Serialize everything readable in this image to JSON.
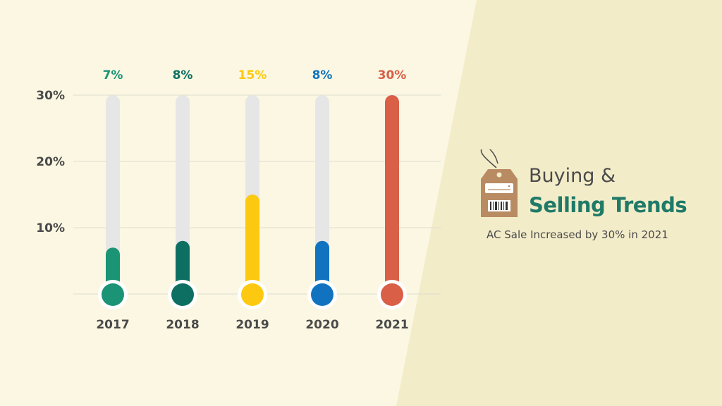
{
  "heading": {
    "line1": "Buying &",
    "line2": "Selling Trends",
    "subtitle": "AC Sale Increased by 30% in 2021"
  },
  "colors": {
    "background": "#f3ecc9",
    "panel": "#fbf7e2",
    "track": "#e6e6e6",
    "grid": "#dcdcd0",
    "accent_text": "#1f7a68",
    "tag": "#b88b63"
  },
  "icons": [
    "price-tag-icon",
    "air-conditioner-icon",
    "barcode-icon"
  ],
  "chart_data": {
    "type": "bar",
    "style": "thermometer",
    "categories": [
      "2017",
      "2018",
      "2019",
      "2020",
      "2021"
    ],
    "values": [
      7,
      8,
      15,
      8,
      30
    ],
    "value_labels": [
      "7%",
      "8%",
      "15%",
      "8%",
      "30%"
    ],
    "colors": [
      "#1a9474",
      "#0d6f62",
      "#fcc910",
      "#1173bf",
      "#d95f47"
    ],
    "ylim": [
      0,
      30
    ],
    "yticks": [
      10,
      20,
      30
    ],
    "ytick_labels": [
      "10%",
      "20%",
      "30%"
    ],
    "grid": true,
    "title": "",
    "xlabel": "",
    "ylabel": ""
  }
}
